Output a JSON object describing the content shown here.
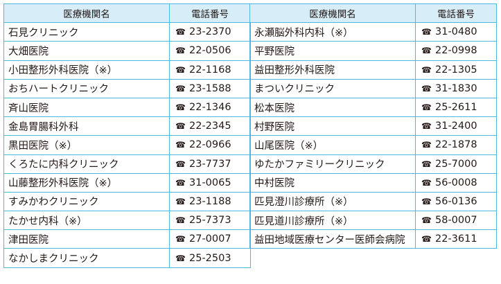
{
  "headers": {
    "name": "医療機関名",
    "phone": "電話番号"
  },
  "phone_icon": "telephone-icon",
  "phone_glyph": "☎",
  "border_color": "#4fb7de",
  "header_bg": "#d7eef9",
  "left": [
    {
      "name": "石見クリニック",
      "phone": "23-2370"
    },
    {
      "name": "大畑医院",
      "phone": "22-0506"
    },
    {
      "name": "小田整形外科医院（※）",
      "phone": "22-1168"
    },
    {
      "name": "おちハートクリニック",
      "phone": "23-1588"
    },
    {
      "name": "斉山医院",
      "phone": "22-1346"
    },
    {
      "name": "金島胃腸科外科",
      "phone": "22-2345"
    },
    {
      "name": "黒田医院（※）",
      "phone": "22-0966"
    },
    {
      "name": "くろたに内科クリニック",
      "phone": "23-7737"
    },
    {
      "name": "山藤整形外科医院（※）",
      "phone": "31-0065"
    },
    {
      "name": "すみかわクリニック",
      "phone": "23-1188"
    },
    {
      "name": "たかせ内科（※）",
      "phone": "25-7373"
    },
    {
      "name": "津田医院",
      "phone": "27-0007"
    },
    {
      "name": "なかしまクリニック",
      "phone": "25-2503"
    }
  ],
  "right": [
    {
      "name": "永瀬脳外科内科（※）",
      "phone": "31-0480"
    },
    {
      "name": "平野医院",
      "phone": "22-0998"
    },
    {
      "name": "益田整形外科医院",
      "phone": "22-1305"
    },
    {
      "name": "まついクリニック",
      "phone": "31-1830"
    },
    {
      "name": "松本医院",
      "phone": "25-2611"
    },
    {
      "name": "村野医院",
      "phone": "31-2400"
    },
    {
      "name": "山尾医院（※）",
      "phone": "22-1878"
    },
    {
      "name": "ゆたかファミリークリニック",
      "phone": "25-7000"
    },
    {
      "name": "中村医院",
      "phone": "56-0008"
    },
    {
      "name": "匹見澄川診療所（※）",
      "phone": "56-0136"
    },
    {
      "name": "匹見道川診療所（※）",
      "phone": "58-0007"
    },
    {
      "name": "益田地域医療センター医師会病院",
      "phone": "22-3611"
    }
  ]
}
